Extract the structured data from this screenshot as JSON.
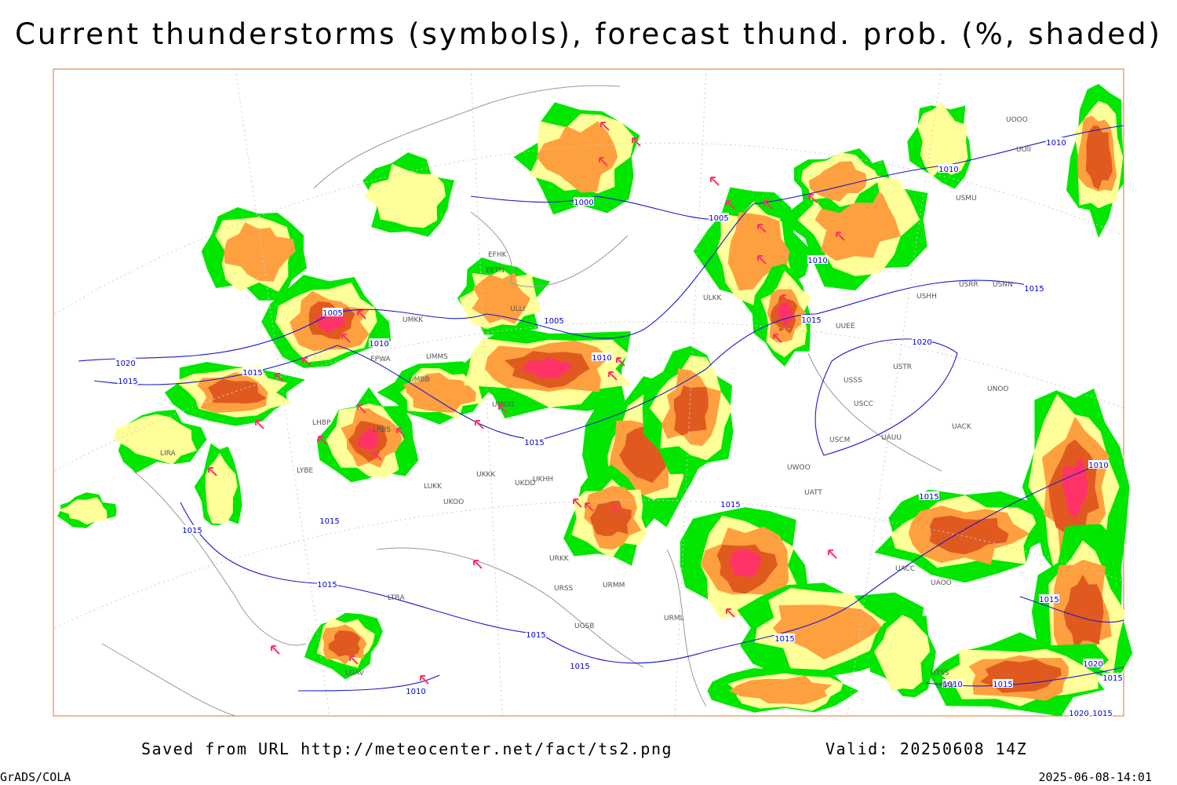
{
  "header": {
    "title": "Current thunderstorms (symbols), forecast thund. prob. (%, shaded)"
  },
  "footer": {
    "source": "Saved from URL http://meteocenter.net/fact/ts2.png",
    "valid": "Valid: 20250608 14Z",
    "software": "GrADS/COLA",
    "timestamp": "2025-06-08-14:01"
  },
  "isobars": [
    "1005",
    "1010",
    "1020",
    "1015",
    "1015",
    "1005",
    "1010",
    "1000",
    "1005",
    "1010",
    "1015",
    "1010",
    "1010",
    "1015",
    "1020",
    "1015",
    "1015",
    "1015",
    "1010",
    "1015",
    "1015",
    "1015",
    "1015",
    "1015",
    "1010",
    "1015",
    "1015",
    "1020",
    "1015",
    "1010",
    "1015",
    "1020",
    "1015"
  ],
  "stations": [
    "EFHK",
    "EETN",
    "ULLI",
    "UMKK",
    "EPWA",
    "UMMS",
    "UMBB",
    "UMGG",
    "LHBP",
    "LRBS",
    "LYBE",
    "LIRA",
    "UKKK",
    "UKHH",
    "UKDD",
    "UKOO",
    "LUKK",
    "URKK",
    "URSS",
    "URMM",
    "URML",
    "UGSB",
    "UUEE",
    "ULKK",
    "USSS",
    "USCC",
    "USTR",
    "UACC",
    "UNOO",
    "USHH",
    "USRR",
    "USNN",
    "USMU",
    "UATT",
    "UWOO",
    "USCM",
    "UAUU",
    "UACK",
    "UTSS",
    "UTAV",
    "UAOO",
    "UOOO",
    "UOII",
    "LTBA",
    "LGAV"
  ]
}
